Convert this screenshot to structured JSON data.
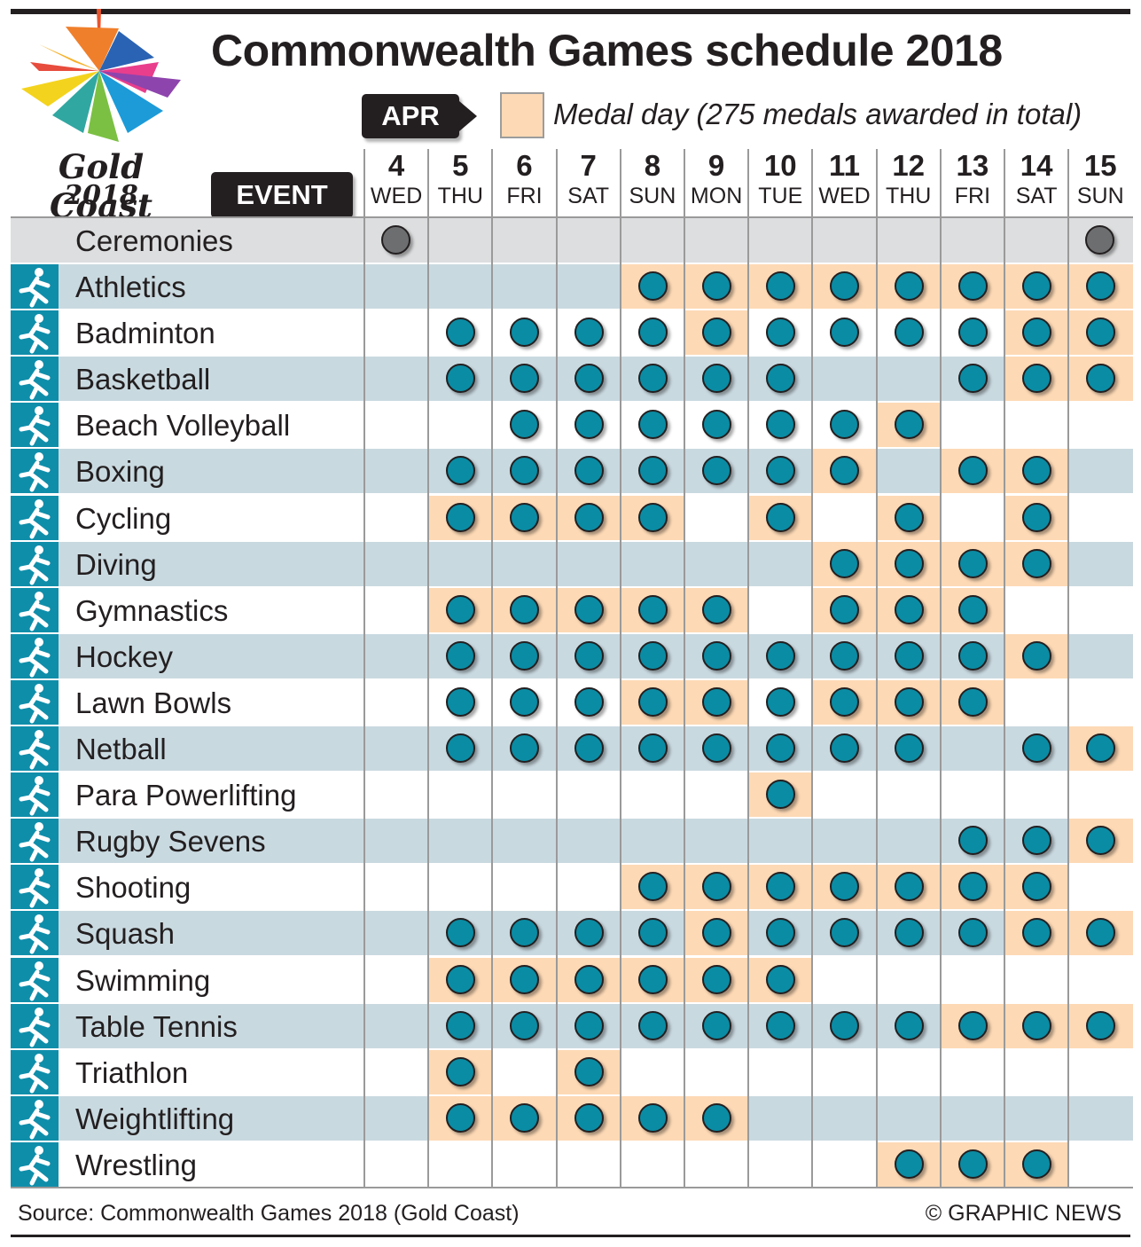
{
  "title": "Commonwealth Games schedule 2018",
  "logo": {
    "line1": "Gold Coast",
    "line2": "2018"
  },
  "month_tag": "APR",
  "event_tag": "EVENT",
  "legend": {
    "label": "Medal day (275 medals awarded in total)",
    "color": "#fdd9b5"
  },
  "colors": {
    "dot": "#0a8ca4",
    "ceremony_dot": "#6d6e70",
    "shade": "#c9d9e0",
    "medal_bg": "#fdd9b5",
    "icon_bg": "#0f8eaa"
  },
  "source": "Source: Commonwealth Games 2018 (Gold Coast)",
  "credit": "© GRAPHIC NEWS",
  "chart_data": {
    "type": "table",
    "days": [
      {
        "num": "4",
        "dow": "WED"
      },
      {
        "num": "5",
        "dow": "THU"
      },
      {
        "num": "6",
        "dow": "FRI"
      },
      {
        "num": "7",
        "dow": "SAT"
      },
      {
        "num": "8",
        "dow": "SUN"
      },
      {
        "num": "9",
        "dow": "MON"
      },
      {
        "num": "10",
        "dow": "TUE"
      },
      {
        "num": "11",
        "dow": "WED"
      },
      {
        "num": "12",
        "dow": "THU"
      },
      {
        "num": "13",
        "dow": "FRI"
      },
      {
        "num": "14",
        "dow": "SAT"
      },
      {
        "num": "15",
        "dow": "SUN"
      }
    ],
    "ceremonies": {
      "name": "Ceremonies",
      "days": [
        "4",
        "15"
      ]
    },
    "events": [
      {
        "name": "Athletics",
        "icon": "athletics-icon",
        "days": [
          "8",
          "9",
          "10",
          "11",
          "12",
          "13",
          "14",
          "15"
        ],
        "medal_days": [
          "8",
          "9",
          "10",
          "11",
          "12",
          "13",
          "14",
          "15"
        ]
      },
      {
        "name": "Badminton",
        "icon": "badminton-icon",
        "days": [
          "5",
          "6",
          "7",
          "8",
          "9",
          "10",
          "11",
          "12",
          "13",
          "14",
          "15"
        ],
        "medal_days": [
          "9",
          "14",
          "15"
        ]
      },
      {
        "name": "Basketball",
        "icon": "basketball-icon",
        "days": [
          "5",
          "6",
          "7",
          "8",
          "9",
          "10",
          "13",
          "14",
          "15"
        ],
        "medal_days": [
          "14",
          "15"
        ]
      },
      {
        "name": "Beach Volleyball",
        "icon": "beach-volleyball-icon",
        "days": [
          "6",
          "7",
          "8",
          "9",
          "10",
          "11",
          "12"
        ],
        "medal_days": [
          "12"
        ]
      },
      {
        "name": "Boxing",
        "icon": "boxing-icon",
        "days": [
          "5",
          "6",
          "7",
          "8",
          "9",
          "10",
          "11",
          "13",
          "14"
        ],
        "medal_days": [
          "11",
          "13",
          "14"
        ]
      },
      {
        "name": "Cycling",
        "icon": "cycling-icon",
        "days": [
          "5",
          "6",
          "7",
          "8",
          "10",
          "12",
          "14"
        ],
        "medal_days": [
          "5",
          "6",
          "7",
          "8",
          "10",
          "12",
          "14"
        ]
      },
      {
        "name": "Diving",
        "icon": "diving-icon",
        "days": [
          "11",
          "12",
          "13",
          "14"
        ],
        "medal_days": [
          "11",
          "12",
          "13",
          "14"
        ]
      },
      {
        "name": "Gymnastics",
        "icon": "gymnastics-icon",
        "days": [
          "5",
          "6",
          "7",
          "8",
          "9",
          "11",
          "12",
          "13"
        ],
        "medal_days": [
          "5",
          "6",
          "7",
          "8",
          "9",
          "11",
          "12",
          "13"
        ]
      },
      {
        "name": "Hockey",
        "icon": "hockey-icon",
        "days": [
          "5",
          "6",
          "7",
          "8",
          "9",
          "10",
          "11",
          "12",
          "13",
          "14"
        ],
        "medal_days": [
          "14"
        ]
      },
      {
        "name": "Lawn Bowls",
        "icon": "lawn-bowls-icon",
        "days": [
          "5",
          "6",
          "7",
          "8",
          "9",
          "10",
          "11",
          "12",
          "13"
        ],
        "medal_days": [
          "8",
          "9",
          "11",
          "12",
          "13"
        ]
      },
      {
        "name": "Netball",
        "icon": "netball-icon",
        "days": [
          "5",
          "6",
          "7",
          "8",
          "9",
          "10",
          "11",
          "12",
          "14",
          "15"
        ],
        "medal_days": [
          "15"
        ]
      },
      {
        "name": "Para Powerlifting",
        "icon": "para-powerlifting-icon",
        "days": [
          "10"
        ],
        "medal_days": [
          "10"
        ]
      },
      {
        "name": "Rugby Sevens",
        "icon": "rugby-sevens-icon",
        "days": [
          "13",
          "14",
          "15"
        ],
        "medal_days": [
          "15"
        ]
      },
      {
        "name": "Shooting",
        "icon": "shooting-icon",
        "days": [
          "8",
          "9",
          "10",
          "11",
          "12",
          "13",
          "14"
        ],
        "medal_days": [
          "8",
          "9",
          "10",
          "11",
          "12",
          "13",
          "14"
        ]
      },
      {
        "name": "Squash",
        "icon": "squash-icon",
        "days": [
          "5",
          "6",
          "7",
          "8",
          "9",
          "10",
          "11",
          "12",
          "13",
          "14",
          "15"
        ],
        "medal_days": [
          "9",
          "14",
          "15"
        ]
      },
      {
        "name": "Swimming",
        "icon": "swimming-icon",
        "days": [
          "5",
          "6",
          "7",
          "8",
          "9",
          "10"
        ],
        "medal_days": [
          "5",
          "6",
          "7",
          "8",
          "9",
          "10"
        ]
      },
      {
        "name": "Table Tennis",
        "icon": "table-tennis-icon",
        "days": [
          "5",
          "6",
          "7",
          "8",
          "9",
          "10",
          "11",
          "12",
          "13",
          "14",
          "15"
        ],
        "medal_days": [
          "13",
          "14",
          "15"
        ]
      },
      {
        "name": "Triathlon",
        "icon": "triathlon-icon",
        "days": [
          "5",
          "7"
        ],
        "medal_days": [
          "5",
          "7"
        ]
      },
      {
        "name": "Weightlifting",
        "icon": "weightlifting-icon",
        "days": [
          "5",
          "6",
          "7",
          "8",
          "9"
        ],
        "medal_days": [
          "5",
          "6",
          "7",
          "8",
          "9"
        ]
      },
      {
        "name": "Wrestling",
        "icon": "wrestling-icon",
        "days": [
          "12",
          "13",
          "14"
        ],
        "medal_days": [
          "12",
          "13",
          "14"
        ]
      }
    ]
  }
}
